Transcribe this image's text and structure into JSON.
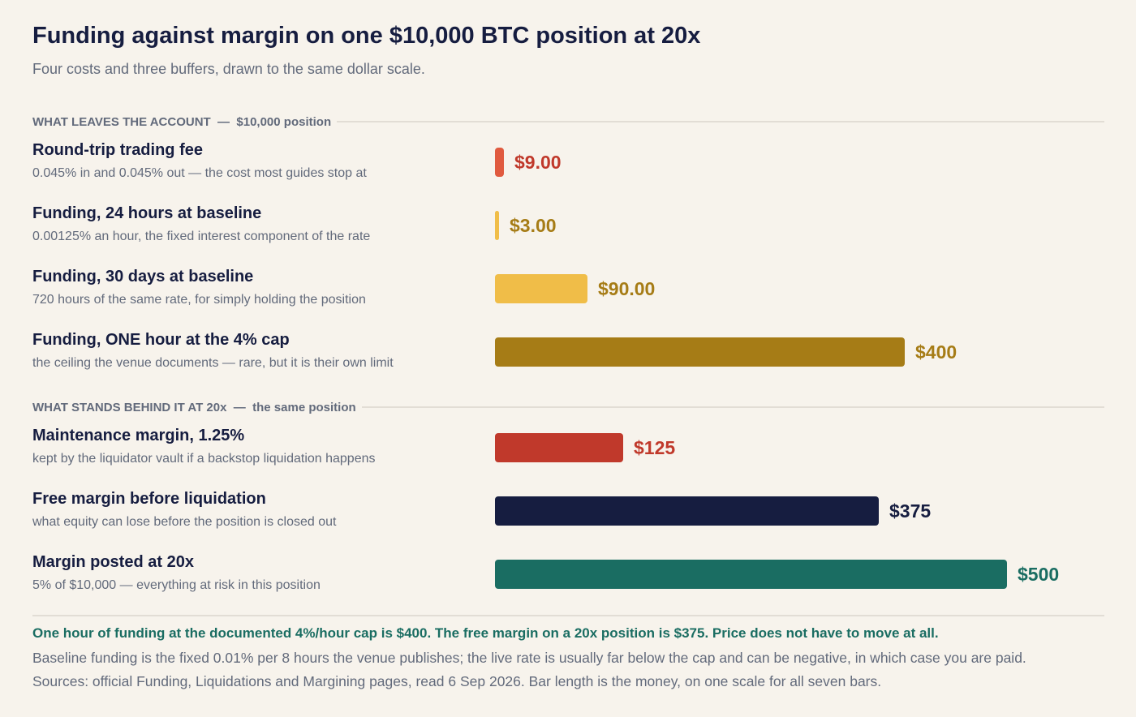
{
  "title": "Funding against margin on one $10,000 BTC position at 20x",
  "subtitle": "Four costs and three buffers, drawn to the same dollar scale.",
  "chart_data": {
    "type": "bar",
    "orientation": "horizontal",
    "title": "Funding against margin on one $10,000 BTC position at 20x",
    "subtitle": "Four costs and three buffers, drawn to the same dollar scale.",
    "xlim": [
      0,
      500
    ],
    "groups": [
      {
        "name": "WHAT LEAVES THE ACCOUNT",
        "qualifier": "$10,000 position",
        "bars": [
          {
            "label": "Round-trip trading fee",
            "note": "0.045% in and 0.045% out — the cost most guides stop at",
            "value": 9,
            "display": "$9.00",
            "color": "#e05a3f",
            "text_color": "#c0392b"
          },
          {
            "label": "Funding, 24 hours at baseline",
            "note": "0.00125% an hour, the fixed interest component of the rate",
            "value": 3,
            "display": "$3.00",
            "color": "#f0bd48",
            "text_color": "#a67c16"
          },
          {
            "label": "Funding, 30 days at baseline",
            "note": "720 hours of the same rate, for simply holding the position",
            "value": 90,
            "display": "$90.00",
            "color": "#f0bd48",
            "text_color": "#a67c16"
          },
          {
            "label": "Funding, ONE hour at the 4% cap",
            "note": "the ceiling the venue documents — rare, but it is their own limit",
            "value": 400,
            "display": "$400",
            "color": "#a67c16",
            "text_color": "#a67c16"
          }
        ]
      },
      {
        "name": "WHAT STANDS BEHIND IT AT 20x",
        "qualifier": "the same position",
        "bars": [
          {
            "label": "Maintenance margin, 1.25%",
            "note": "kept by the liquidator vault if a backstop liquidation happens",
            "value": 125,
            "display": "$125",
            "color": "#c0392b",
            "text_color": "#c0392b"
          },
          {
            "label": "Free margin before liquidation",
            "note": "what equity can lose before the position is closed out",
            "value": 375,
            "display": "$375",
            "color": "#161d40",
            "text_color": "#161d40"
          },
          {
            "label": "Margin posted at 20x",
            "note": "5% of $10,000 — everything at risk in this position",
            "value": 500,
            "display": "$500",
            "color": "#1a6d62",
            "text_color": "#1a6d62"
          }
        ]
      }
    ]
  },
  "footer": {
    "highlight": "One hour of funding at the documented 4%/hour cap is $400. The free margin on a 20x position is $375. Price does not have to move at all.",
    "line2": "Baseline funding is the fixed 0.01% per 8 hours the venue publishes; the live rate is usually far below the cap and can be negative, in which case you are paid.",
    "line3": "Sources: official Funding, Liquidations and Margining pages, read 6 Sep 2026. Bar length is the money, on one scale for all seven bars."
  }
}
